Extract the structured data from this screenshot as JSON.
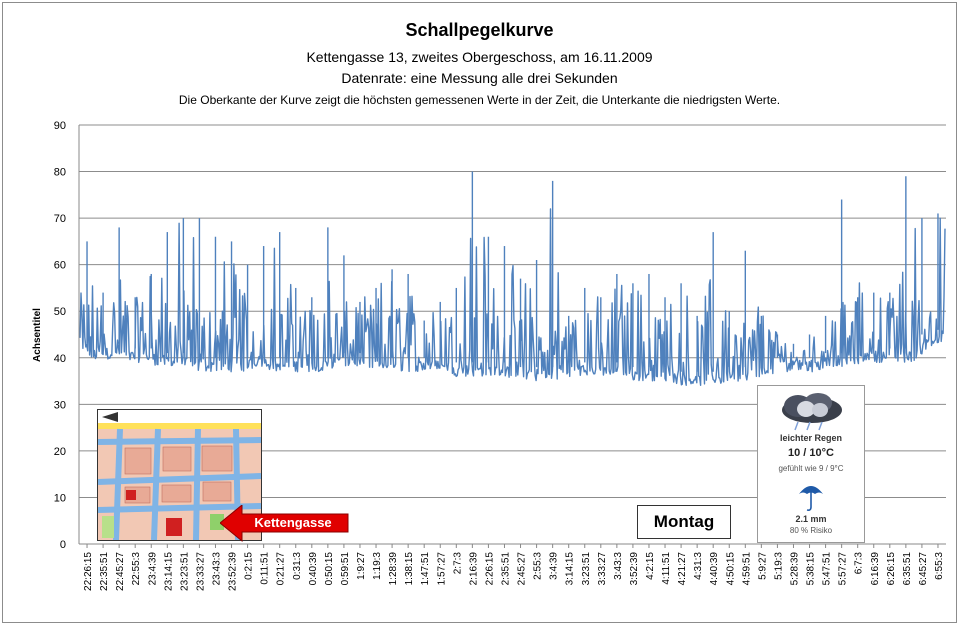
{
  "chart_data": {
    "type": "line",
    "title": "Schallpegelkurve",
    "subtitle_lines": [
      "Kettengasse 13, zweites Obergeschoss, am 16.11.2009",
      "Datenrate: eine Messung alle drei Sekunden",
      "Die Oberkante der Kurve zeigt die höchsten gemessenen Werte  in der Zeit, die Unterkante  die niedrigsten Werte."
    ],
    "ylabel": "Achsentitel",
    "xlabel": "",
    "ylim": [
      0,
      90
    ],
    "yticks": [
      0,
      10,
      20,
      30,
      40,
      50,
      60,
      70,
      80,
      90
    ],
    "grid": true,
    "line_color": "#4f81bd",
    "categories": [
      "22:26:15",
      "22:35:51",
      "22:45:27",
      "22:55:3",
      "23:4:39",
      "23:14:15",
      "23:23:51",
      "23:33:27",
      "23:43:3",
      "23:52:39",
      "0:2:15",
      "0:11:51",
      "0:21:27",
      "0:31:3",
      "0:40:39",
      "0:50:15",
      "0:59:51",
      "1:9:27",
      "1:19:3",
      "1:28:39",
      "1:38:15",
      "1:47:51",
      "1:57:27",
      "2:7:3",
      "2:16:39",
      "2:26:15",
      "2:35:51",
      "2:45:27",
      "2:55:3",
      "3:4:39",
      "3:14:15",
      "3:23:51",
      "3:33:27",
      "3:43:3",
      "3:52:39",
      "4:2:15",
      "4:11:51",
      "4:21:27",
      "4:31:3",
      "4:40:39",
      "4:50:15",
      "4:59:51",
      "5:9:27",
      "5:19:3",
      "5:28:39",
      "5:38:15",
      "5:47:51",
      "5:57:27",
      "6:7:3",
      "6:16:39",
      "6:26:15",
      "6:35:51",
      "6:45:27",
      "6:55:3"
    ],
    "series": [
      {
        "min": [
          40,
          39,
          40,
          39,
          39,
          38,
          38,
          37,
          37,
          37,
          37,
          38,
          37,
          37,
          37,
          37,
          38,
          38,
          37,
          37,
          37,
          37,
          37,
          36,
          36,
          36,
          36,
          35,
          35,
          35,
          36,
          36,
          36,
          36,
          35,
          35,
          35,
          34,
          34,
          34,
          35,
          35,
          36,
          37,
          37,
          37,
          38,
          38,
          39,
          39,
          39,
          39,
          42,
          43
        ],
        "max": [
          65,
          54,
          68,
          53,
          58,
          67,
          70,
          70,
          66,
          65,
          60,
          64,
          67,
          55,
          53,
          68,
          62,
          52,
          55,
          59,
          58,
          48,
          52,
          55,
          80,
          66,
          64,
          57,
          61,
          78,
          49,
          55,
          53,
          58,
          56,
          58,
          53,
          56,
          49,
          67,
          50,
          63,
          49,
          45,
          43,
          45,
          49,
          74,
          53,
          54,
          54,
          79,
          70,
          71
        ]
      }
    ]
  },
  "weather_widget": {
    "icon": "rain-cloud-icon",
    "description": "leichter Regen",
    "temperature": "10 / 10°C",
    "feels_like": "gefühlt wie 9 / 9°C",
    "rain_icon": "umbrella-icon",
    "rain_amount": "2.1 mm",
    "rain_risk": "80 % Risiko"
  },
  "day_label": "Montag",
  "map_callout": {
    "label": "Kettengasse",
    "arrow_color": "#e00000"
  }
}
